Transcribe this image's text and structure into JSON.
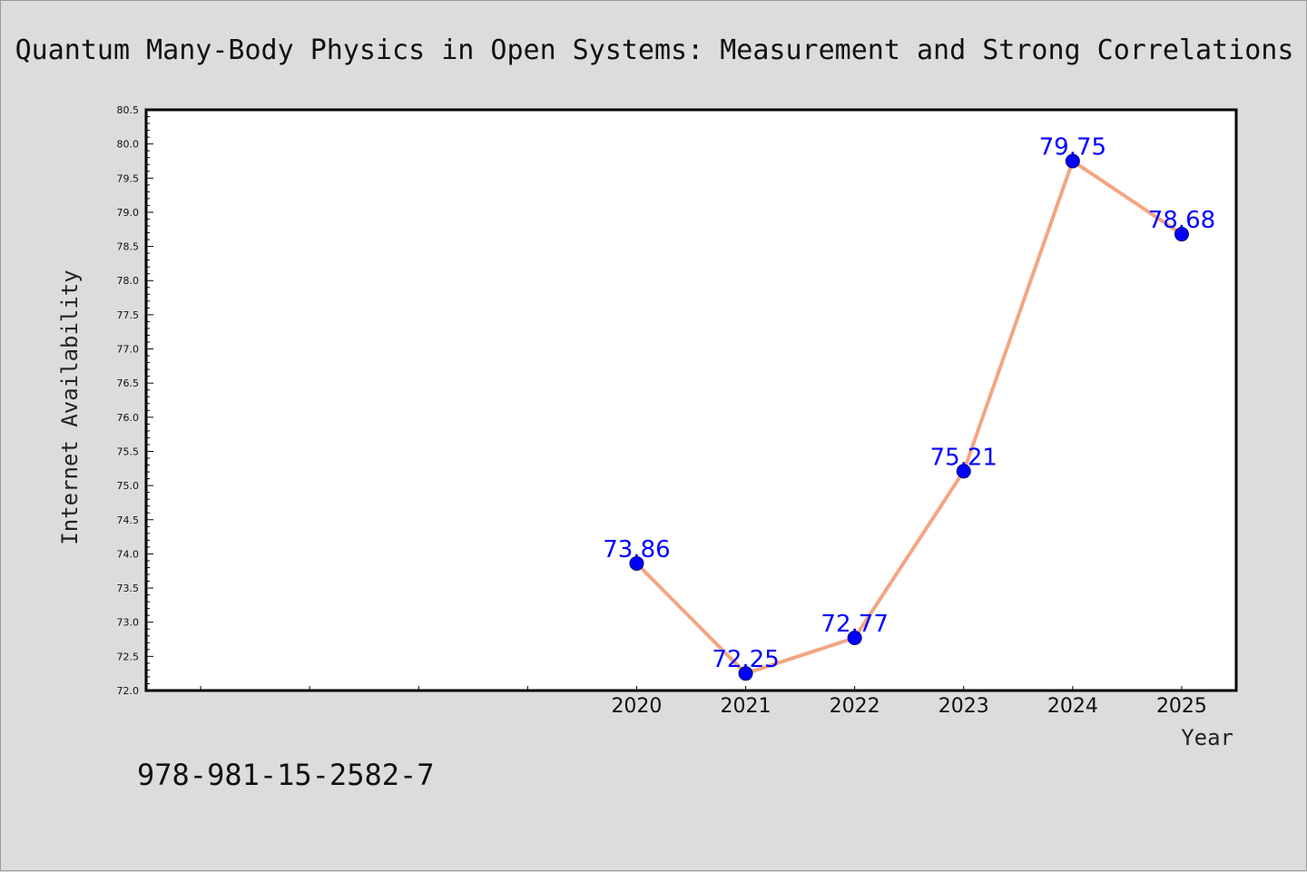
{
  "chart_data": {
    "type": "line",
    "title": "Quantum Many-Body Physics in Open Systems: Measurement and Strong Correlations",
    "xlabel": "Year",
    "ylabel": "Internet Availability",
    "x": [
      "2020",
      "2021",
      "2022",
      "2023",
      "2024",
      "2025"
    ],
    "series": [
      {
        "values": [
          73.86,
          72.25,
          72.77,
          75.21,
          79.75,
          78.68
        ]
      }
    ],
    "data_labels": [
      "73.86",
      "72.25",
      "72.77",
      "75.21",
      "79.75",
      "78.68"
    ],
    "ylim": [
      72.0,
      80.5
    ],
    "y_ticks": [
      "72.0",
      "72.5",
      "73.0",
      "73.5",
      "74.0",
      "74.5",
      "75.0",
      "75.5",
      "76.0",
      "76.5",
      "77.0",
      "77.5",
      "78.0",
      "78.5",
      "79.0",
      "79.5",
      "80.0",
      "80.5"
    ],
    "xlim": [
      2015.5,
      2025.5
    ],
    "grid": false,
    "line_color": "#f4a582",
    "marker_color": "#0000ff",
    "label_color": "#0000ff",
    "plot_background": "#ffffff",
    "figure_background": "#dcdcdc"
  },
  "footer": {
    "isbn": "978-981-15-2582-7"
  }
}
